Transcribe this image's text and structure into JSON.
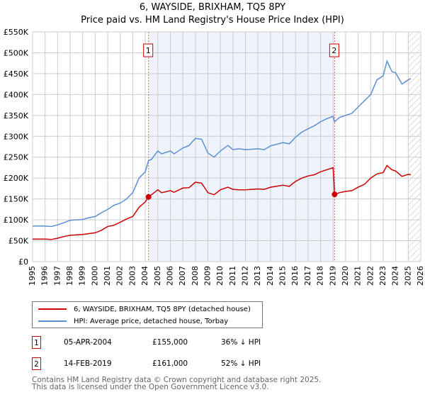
{
  "title": "6, WAYSIDE, BRIXHAM, TQ5 8PY",
  "subtitle": "Price paid vs. HM Land Registry's House Price Index (HPI)",
  "chart_data": {
    "type": "line",
    "xlim": [
      1995,
      2026
    ],
    "ylim": [
      0,
      550000
    ],
    "x_ticks": [
      "1995",
      "1996",
      "1997",
      "1998",
      "1999",
      "2000",
      "2001",
      "2002",
      "2003",
      "2004",
      "2005",
      "2006",
      "2007",
      "2008",
      "2009",
      "2010",
      "2011",
      "2012",
      "2013",
      "2014",
      "2015",
      "2016",
      "2017",
      "2018",
      "2019",
      "2020",
      "2021",
      "2022",
      "2023",
      "2024",
      "2025",
      "2026"
    ],
    "y_ticks": [
      {
        "v": 0,
        "l": "£0"
      },
      {
        "v": 50000,
        "l": "£50K"
      },
      {
        "v": 100000,
        "l": "£100K"
      },
      {
        "v": 150000,
        "l": "£150K"
      },
      {
        "v": 200000,
        "l": "£200K"
      },
      {
        "v": 250000,
        "l": "£250K"
      },
      {
        "v": 300000,
        "l": "£300K"
      },
      {
        "v": 350000,
        "l": "£350K"
      },
      {
        "v": 400000,
        "l": "£400K"
      },
      {
        "v": 450000,
        "l": "£450K"
      },
      {
        "v": 500000,
        "l": "£500K"
      },
      {
        "v": 550000,
        "l": "£550K"
      }
    ],
    "grid": true,
    "shaded_range": [
      2004.26,
      2019.12
    ],
    "forecast_hatch_from": 2025.0,
    "x": [
      1995,
      1996,
      1996.5,
      1997,
      1997.5,
      1998,
      1999,
      1999.5,
      2000,
      2000.5,
      2001,
      2001.5,
      2002,
      2002.5,
      2003,
      2003.5,
      2004,
      2004.26,
      2004.5,
      2005,
      2005.3,
      2006,
      2006.3,
      2007,
      2007.5,
      2008,
      2008.5,
      2009,
      2009.5,
      2010,
      2010.6,
      2011,
      2011.5,
      2012,
      2013,
      2013.5,
      2014,
      2015,
      2015.5,
      2016,
      2016.5,
      2017,
      2017.5,
      2018,
      2018.5,
      2019,
      2019.12,
      2019.5,
      2020,
      2020.5,
      2021,
      2021.5,
      2022,
      2022.5,
      2023,
      2023.3,
      2023.7,
      2024,
      2024.5,
      2025,
      2025.2
    ],
    "series": [
      {
        "name": "6, WAYSIDE, BRIXHAM, TQ5 8PY (detached house)",
        "color": "#cc0000",
        "values": [
          54,
          54,
          53,
          56,
          60,
          63,
          65,
          67,
          69,
          75,
          84,
          87,
          94,
          102,
          108,
          130,
          143,
          155,
          160,
          172,
          165,
          170,
          166,
          176,
          177,
          190,
          188,
          165,
          160,
          172,
          178,
          173,
          172,
          172,
          174,
          173,
          178,
          183,
          180,
          192,
          200,
          205,
          208,
          215,
          220,
          225,
          161,
          165,
          168,
          170,
          178,
          185,
          200,
          210,
          213,
          230,
          220,
          217,
          204,
          209,
          208
        ]
      },
      {
        "name": "HPI: Average price, detached house, Torbay",
        "color": "#5b8fd6",
        "values": [
          85,
          85,
          84,
          88,
          93,
          99,
          101,
          105,
          108,
          117,
          125,
          135,
          140,
          150,
          165,
          200,
          215,
          242,
          245,
          265,
          258,
          265,
          258,
          272,
          278,
          295,
          293,
          260,
          250,
          265,
          278,
          268,
          270,
          268,
          270,
          268,
          277,
          285,
          282,
          298,
          310,
          318,
          325,
          335,
          342,
          348,
          335,
          345,
          350,
          355,
          370,
          385,
          400,
          435,
          445,
          480,
          455,
          452,
          425,
          435,
          438
        ]
      }
    ],
    "value_unit": "thousand GBP",
    "markers": [
      {
        "label": "1",
        "x": 2004.26,
        "y": 155
      },
      {
        "label": "2",
        "x": 2019.12,
        "y": 161
      }
    ]
  },
  "transactions": [
    {
      "num": "1",
      "date": "05-APR-2004",
      "price": "£155,000",
      "delta": "36% ↓ HPI"
    },
    {
      "num": "2",
      "date": "14-FEB-2019",
      "price": "£161,000",
      "delta": "52% ↓ HPI"
    }
  ],
  "footer": [
    "Contains HM Land Registry data © Crown copyright and database right 2025.",
    "This data is licensed under the Open Government Licence v3.0."
  ]
}
